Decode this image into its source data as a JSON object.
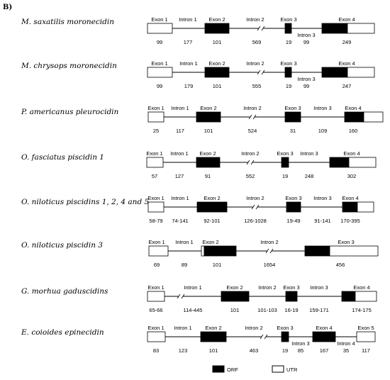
{
  "panel_label": "B)",
  "legend": {
    "orf_label": "ORF",
    "utr_label": "UTR",
    "orf_color": "#000000",
    "utr_color": "#ffffff"
  },
  "rows": [
    {
      "species": "M. saxatilis moronecidin",
      "labels": [
        "Exon 1",
        "Intron 1",
        "Exon 2",
        "Intron 2",
        "Exon 3",
        "Intron 3",
        "Exon 4"
      ],
      "values": [
        "99",
        "177",
        "101",
        "569",
        "19",
        "99",
        "249"
      ]
    },
    {
      "species": "M. chrysops moronecidin",
      "labels": [
        "Exon 1",
        "Intron 1",
        "Exon 2",
        "Intron 2",
        "Exon 3",
        "Intron 3",
        "Exon 4"
      ],
      "values": [
        "99",
        "179",
        "101",
        "555",
        "19",
        "99",
        "247"
      ]
    },
    {
      "species": "P. americanus pleurocidin",
      "labels": [
        "Exon 1",
        "Intron 1",
        "Exon 2",
        "Intron 2",
        "Exon 3",
        "Intron 3",
        "Exon 4"
      ],
      "values": [
        "25",
        "117",
        "101",
        "524",
        "31",
        "109",
        "160"
      ]
    },
    {
      "species": "O. fasciatus piscidin 1",
      "labels": [
        "Exon 1",
        "Intron 1",
        "Exon 2",
        "Intron 2",
        "Exon 3",
        "Intron 3",
        "Exon 4"
      ],
      "values": [
        "57",
        "127",
        "91",
        "552",
        "19",
        "248",
        "302"
      ]
    },
    {
      "species": "O. niloticus piscidins 1, 2, 4 and 5",
      "labels": [
        "Exon 1",
        "Intron 1",
        "Exon 2",
        "Intron 2",
        "Exon 3",
        "Intron 3",
        "Exon 4"
      ],
      "values": [
        "58-79",
        "74-141",
        "92-101",
        "126-1028",
        "19-49",
        "91-141",
        "170-395"
      ]
    },
    {
      "species": "O. niloticus piscidin 3",
      "labels": [
        "Exon 1",
        "Intron 1",
        "Exon 2",
        "Intron 2",
        "Exon 3"
      ],
      "values": [
        "69",
        "89",
        "101",
        "1654",
        "456"
      ]
    },
    {
      "species": "G. morhua gaduscidins",
      "labels": [
        "Exon 1",
        "Intron 1",
        "Exon 2",
        "Intron 2",
        "Exon 3",
        "Intron 3",
        "Exon 4"
      ],
      "values": [
        "65-66",
        "114-445",
        "101",
        "101-103",
        "16-19",
        "159-171",
        "174-175"
      ]
    },
    {
      "species": "E. coioides epinecidin",
      "labels": [
        "Exon 1",
        "Intron 1",
        "Exon 2",
        "Intron 2",
        "Exon 3",
        "Intron 3",
        "Exon 4",
        "Intron 4",
        "Exon 5"
      ],
      "values": [
        "83",
        "123",
        "101",
        "463",
        "19",
        "85",
        "167",
        "35",
        "117"
      ]
    }
  ]
}
